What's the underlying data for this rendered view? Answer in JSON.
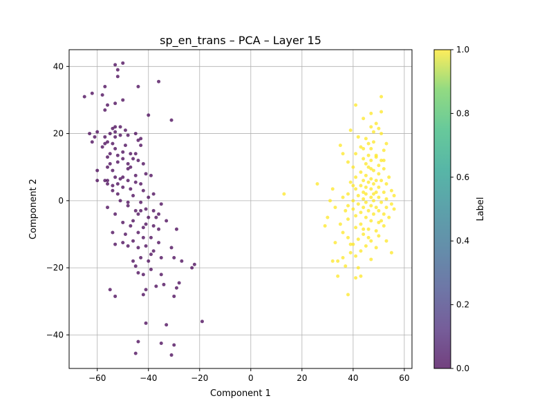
{
  "chart_data": {
    "type": "scatter",
    "title": "sp_en_trans – PCA – Layer 15",
    "xlabel": "Component 1",
    "ylabel": "Component 2",
    "xlim": [
      -71,
      63
    ],
    "ylim": [
      -50,
      45
    ],
    "xticks": [
      -60,
      -40,
      -20,
      0,
      20,
      40,
      60
    ],
    "yticks": [
      -40,
      -20,
      0,
      20,
      40
    ],
    "xtick_labels": [
      "−60",
      "−40",
      "−20",
      "0",
      "20",
      "40",
      "60"
    ],
    "ytick_labels": [
      "−40",
      "−20",
      "0",
      "20",
      "40"
    ],
    "grid": true,
    "colorbar": {
      "label": "Label",
      "range": [
        0,
        1
      ],
      "ticks": [
        0.0,
        0.2,
        0.4,
        0.6,
        0.8,
        1.0
      ],
      "tick_labels": [
        "0.0",
        "0.2",
        "0.4",
        "0.6",
        "0.8",
        "1.0"
      ],
      "colormap": "viridis"
    },
    "point_alpha": 0.75,
    "colors": {
      "label0": "#440154",
      "label1": "#fde725"
    },
    "points": [
      [
        -53,
        40.5,
        0
      ],
      [
        -50,
        41,
        0
      ],
      [
        -52,
        39,
        0
      ],
      [
        -52,
        37,
        0
      ],
      [
        -36,
        35.5,
        0
      ],
      [
        -44,
        34,
        0
      ],
      [
        -57,
        34,
        0
      ],
      [
        -62,
        32,
        0
      ],
      [
        -58,
        31.5,
        0
      ],
      [
        -65,
        31,
        0
      ],
      [
        -50,
        30,
        0
      ],
      [
        -53,
        29,
        0
      ],
      [
        -56,
        28.5,
        0
      ],
      [
        -57,
        27,
        0
      ],
      [
        -40,
        25.5,
        0
      ],
      [
        -31,
        24,
        0
      ],
      [
        -53,
        22,
        0
      ],
      [
        -51,
        22,
        0
      ],
      [
        -54,
        21.5,
        0
      ],
      [
        -49,
        21,
        0
      ],
      [
        -53,
        20.5,
        0
      ],
      [
        -45,
        20,
        0
      ],
      [
        -60,
        20.5,
        0
      ],
      [
        -63,
        20,
        0
      ],
      [
        -55,
        20,
        0
      ],
      [
        -48,
        19.5,
        0
      ],
      [
        -51,
        19.5,
        0
      ],
      [
        -61,
        19,
        0
      ],
      [
        -43,
        18.5,
        0
      ],
      [
        -53,
        19,
        0
      ],
      [
        -44,
        18,
        0
      ],
      [
        -62,
        17.5,
        0
      ],
      [
        -57,
        17,
        0
      ],
      [
        -56,
        17.5,
        0
      ],
      [
        -54,
        17,
        0
      ],
      [
        -49,
        16.5,
        0
      ],
      [
        -43,
        16.5,
        0
      ],
      [
        -58,
        16,
        0
      ],
      [
        -53,
        15.5,
        0
      ],
      [
        -50,
        14.5,
        0
      ],
      [
        -55,
        14,
        0
      ],
      [
        -52,
        13.5,
        0
      ],
      [
        -47,
        14,
        0
      ],
      [
        -56,
        13,
        0
      ],
      [
        -46,
        12.5,
        0
      ],
      [
        -44,
        12,
        0
      ],
      [
        -50,
        12.5,
        0
      ],
      [
        -52,
        11.5,
        0
      ],
      [
        -48,
        11,
        0
      ],
      [
        -42,
        11,
        0
      ],
      [
        -56,
        10,
        0
      ],
      [
        -60,
        9,
        0
      ],
      [
        -48,
        9.5,
        0
      ],
      [
        -54,
        9,
        0
      ],
      [
        -41,
        8,
        0
      ],
      [
        -45,
        7.5,
        0
      ],
      [
        -39,
        7.5,
        0
      ],
      [
        -53,
        7,
        0
      ],
      [
        -50,
        7,
        0
      ],
      [
        -51,
        6.5,
        0
      ],
      [
        -56,
        6,
        0
      ],
      [
        -60,
        6,
        0
      ],
      [
        -48,
        6,
        0
      ],
      [
        -45,
        5.5,
        0
      ],
      [
        -52,
        5,
        0
      ],
      [
        -43,
        5,
        0
      ],
      [
        -56,
        5,
        0
      ],
      [
        -54,
        4.5,
        0
      ],
      [
        -50,
        4,
        0
      ],
      [
        -47,
        3.5,
        0
      ],
      [
        -42,
        3,
        0
      ],
      [
        -54,
        3,
        0
      ],
      [
        -52,
        2,
        0
      ],
      [
        -46,
        1.5,
        0
      ],
      [
        -40,
        1,
        0
      ],
      [
        -38,
        2,
        0
      ],
      [
        -43,
        -0.5,
        0
      ],
      [
        -48,
        -0.5,
        0
      ],
      [
        -51,
        0,
        0
      ],
      [
        -56,
        -2,
        0
      ],
      [
        -48,
        -1.5,
        0
      ],
      [
        -41,
        -2.5,
        0
      ],
      [
        -35,
        -1,
        0
      ],
      [
        -38,
        -3,
        0
      ],
      [
        -43,
        -3,
        0
      ],
      [
        -44,
        -4,
        0
      ],
      [
        -36,
        -4,
        0
      ],
      [
        -40,
        -5,
        0
      ],
      [
        -37,
        -5,
        0
      ],
      [
        -53,
        -4,
        0
      ],
      [
        -33,
        -6,
        0
      ],
      [
        -46,
        -6,
        0
      ],
      [
        -50,
        -6.5,
        0
      ],
      [
        -41,
        -7,
        0
      ],
      [
        -38,
        -7.5,
        0
      ],
      [
        -47,
        -7.5,
        0
      ],
      [
        -42,
        -8,
        0
      ],
      [
        -36,
        -8.5,
        0
      ],
      [
        -29,
        -8.5,
        0
      ],
      [
        -44,
        -9.5,
        0
      ],
      [
        -54,
        -9.5,
        0
      ],
      [
        -49,
        -10,
        0
      ],
      [
        -39,
        -11,
        0
      ],
      [
        -42,
        -11,
        0
      ],
      [
        -46,
        -12,
        0
      ],
      [
        -50,
        -12.5,
        0
      ],
      [
        -53,
        -13,
        0
      ],
      [
        -36,
        -12.5,
        0
      ],
      [
        -41,
        -13.5,
        0
      ],
      [
        -31,
        -14,
        0
      ],
      [
        -44,
        -14,
        0
      ],
      [
        -48,
        -13.5,
        0
      ],
      [
        -38,
        -15,
        0
      ],
      [
        -43,
        -17,
        0
      ],
      [
        -35,
        -17,
        0
      ],
      [
        -30,
        -17,
        0
      ],
      [
        -27,
        -18,
        0
      ],
      [
        -40,
        -18,
        0
      ],
      [
        -46,
        -18,
        0
      ],
      [
        -22,
        -19,
        0
      ],
      [
        -23,
        -20,
        0
      ],
      [
        -45,
        -19.5,
        0
      ],
      [
        -39,
        -20.5,
        0
      ],
      [
        -44,
        -21.5,
        0
      ],
      [
        -42,
        -22,
        0
      ],
      [
        -35,
        -22,
        0
      ],
      [
        -28,
        -24.5,
        0
      ],
      [
        -34,
        -25,
        0
      ],
      [
        -29,
        -26,
        0
      ],
      [
        -37,
        -25.5,
        0
      ],
      [
        -55,
        -26.5,
        0
      ],
      [
        -41,
        -26.5,
        0
      ],
      [
        -42,
        -28,
        0
      ],
      [
        -53,
        -28.5,
        0
      ],
      [
        -30,
        -28.5,
        0
      ],
      [
        -41,
        -36.5,
        0
      ],
      [
        -33,
        -37,
        0
      ],
      [
        -19,
        -36,
        0
      ],
      [
        -44,
        -42,
        0
      ],
      [
        -35,
        -42.5,
        0
      ],
      [
        -30,
        -43,
        0
      ],
      [
        -45,
        -45.5,
        0
      ],
      [
        -31,
        -46,
        0
      ],
      [
        -57,
        19,
        0
      ],
      [
        -45,
        14,
        0
      ],
      [
        -55,
        11,
        0
      ],
      [
        -47,
        10,
        0
      ],
      [
        -57,
        6,
        0
      ],
      [
        -45,
        -3,
        0
      ],
      [
        -39,
        -16,
        0
      ],
      [
        51,
        31,
        1
      ],
      [
        41,
        28.5,
        1
      ],
      [
        47,
        26,
        1
      ],
      [
        51,
        26.5,
        1
      ],
      [
        44,
        24.5,
        1
      ],
      [
        49,
        23,
        1
      ],
      [
        47,
        22,
        1
      ],
      [
        50,
        21.5,
        1
      ],
      [
        39,
        21,
        1
      ],
      [
        48,
        20.5,
        1
      ],
      [
        51,
        20,
        1
      ],
      [
        42,
        19,
        1
      ],
      [
        45,
        18.5,
        1
      ],
      [
        46,
        17,
        1
      ],
      [
        48,
        17.5,
        1
      ],
      [
        53,
        17,
        1
      ],
      [
        35,
        16.5,
        1
      ],
      [
        43,
        16,
        1
      ],
      [
        44,
        15.5,
        1
      ],
      [
        47,
        15.5,
        1
      ],
      [
        52,
        15,
        1
      ],
      [
        36,
        14,
        1
      ],
      [
        41,
        14,
        1
      ],
      [
        46,
        13.5,
        1
      ],
      [
        49,
        13,
        1
      ],
      [
        44,
        12.5,
        1
      ],
      [
        47,
        12,
        1
      ],
      [
        51,
        12,
        1
      ],
      [
        38,
        11.5,
        1
      ],
      [
        45,
        11,
        1
      ],
      [
        50,
        10.5,
        1
      ],
      [
        40,
        10,
        1
      ],
      [
        47,
        9.5,
        1
      ],
      [
        52,
        9.5,
        1
      ],
      [
        48,
        9,
        1
      ],
      [
        43,
        8.5,
        1
      ],
      [
        50,
        8,
        1
      ],
      [
        45,
        7.5,
        1
      ],
      [
        41,
        7,
        1
      ],
      [
        54,
        7,
        1
      ],
      [
        47,
        6.5,
        1
      ],
      [
        44,
        6,
        1
      ],
      [
        49,
        6,
        1
      ],
      [
        51,
        6,
        1
      ],
      [
        39,
        5.5,
        1
      ],
      [
        46,
        5.5,
        1
      ],
      [
        26,
        5,
        1
      ],
      [
        48,
        5,
        1
      ],
      [
        53,
        5,
        1
      ],
      [
        43,
        4.5,
        1
      ],
      [
        45,
        4,
        1
      ],
      [
        50,
        4,
        1
      ],
      [
        41,
        3.5,
        1
      ],
      [
        47,
        3.5,
        1
      ],
      [
        32,
        3.5,
        1
      ],
      [
        55,
        3,
        1
      ],
      [
        44,
        2.5,
        1
      ],
      [
        49,
        2.5,
        1
      ],
      [
        52,
        2.5,
        1
      ],
      [
        13,
        2,
        1
      ],
      [
        38,
        2,
        1
      ],
      [
        45,
        2,
        1
      ],
      [
        56,
        1.5,
        1
      ],
      [
        42,
        1.5,
        1
      ],
      [
        47,
        1,
        1
      ],
      [
        50,
        1,
        1
      ],
      [
        36,
        1,
        1
      ],
      [
        44,
        0.5,
        1
      ],
      [
        53,
        0.5,
        1
      ],
      [
        40,
        0,
        1
      ],
      [
        48,
        0,
        1
      ],
      [
        31,
        0,
        1
      ],
      [
        45,
        -0.5,
        1
      ],
      [
        51,
        -0.5,
        1
      ],
      [
        55,
        -1,
        1
      ],
      [
        42,
        -1,
        1
      ],
      [
        47,
        -1.5,
        1
      ],
      [
        38,
        -1.5,
        1
      ],
      [
        49,
        -2,
        1
      ],
      [
        44,
        -2,
        1
      ],
      [
        53,
        -2,
        1
      ],
      [
        33,
        -2,
        1
      ],
      [
        56,
        -2.5,
        1
      ],
      [
        40,
        -2.5,
        1
      ],
      [
        46,
        -3,
        1
      ],
      [
        50,
        -3,
        1
      ],
      [
        43,
        -3.5,
        1
      ],
      [
        48,
        -4,
        1
      ],
      [
        52,
        -4,
        1
      ],
      [
        41,
        -4.5,
        1
      ],
      [
        30,
        -5,
        1
      ],
      [
        45,
        -5,
        1
      ],
      [
        54,
        -5,
        1
      ],
      [
        38,
        -5.5,
        1
      ],
      [
        47,
        -6,
        1
      ],
      [
        50,
        -6.5,
        1
      ],
      [
        43,
        -7,
        1
      ],
      [
        35,
        -7,
        1
      ],
      [
        29,
        -7.5,
        1
      ],
      [
        52,
        -7.5,
        1
      ],
      [
        41,
        -8,
        1
      ],
      [
        46,
        -8.5,
        1
      ],
      [
        49,
        -9,
        1
      ],
      [
        36,
        -9.5,
        1
      ],
      [
        44,
        -10,
        1
      ],
      [
        50,
        -10.5,
        1
      ],
      [
        38,
        -11,
        1
      ],
      [
        42,
        -11.5,
        1
      ],
      [
        47,
        -12,
        1
      ],
      [
        53,
        -12,
        1
      ],
      [
        33,
        -12.5,
        1
      ],
      [
        40,
        -13,
        1
      ],
      [
        45,
        -13.5,
        1
      ],
      [
        39,
        -13,
        1
      ],
      [
        49,
        -14,
        1
      ],
      [
        43,
        -15,
        1
      ],
      [
        55,
        -15.5,
        1
      ],
      [
        39,
        -15.5,
        1
      ],
      [
        41,
        -16.5,
        1
      ],
      [
        36,
        -17,
        1
      ],
      [
        47,
        -17.5,
        1
      ],
      [
        32,
        -18,
        1
      ],
      [
        34,
        -18,
        1
      ],
      [
        37,
        -19.5,
        1
      ],
      [
        42,
        -20,
        1
      ],
      [
        34,
        -22.5,
        1
      ],
      [
        43,
        -22.5,
        1
      ],
      [
        41,
        -23,
        1
      ],
      [
        38,
        -28,
        1
      ],
      [
        49,
        13.5,
        1
      ],
      [
        46,
        10,
        1
      ],
      [
        51,
        -6,
        1
      ],
      [
        48,
        2,
        1
      ],
      [
        44,
        -8.5,
        1
      ],
      [
        40,
        4.5,
        1
      ],
      [
        52,
        12,
        1
      ],
      [
        37,
        -3,
        1
      ],
      [
        46,
        -11,
        1
      ]
    ]
  }
}
